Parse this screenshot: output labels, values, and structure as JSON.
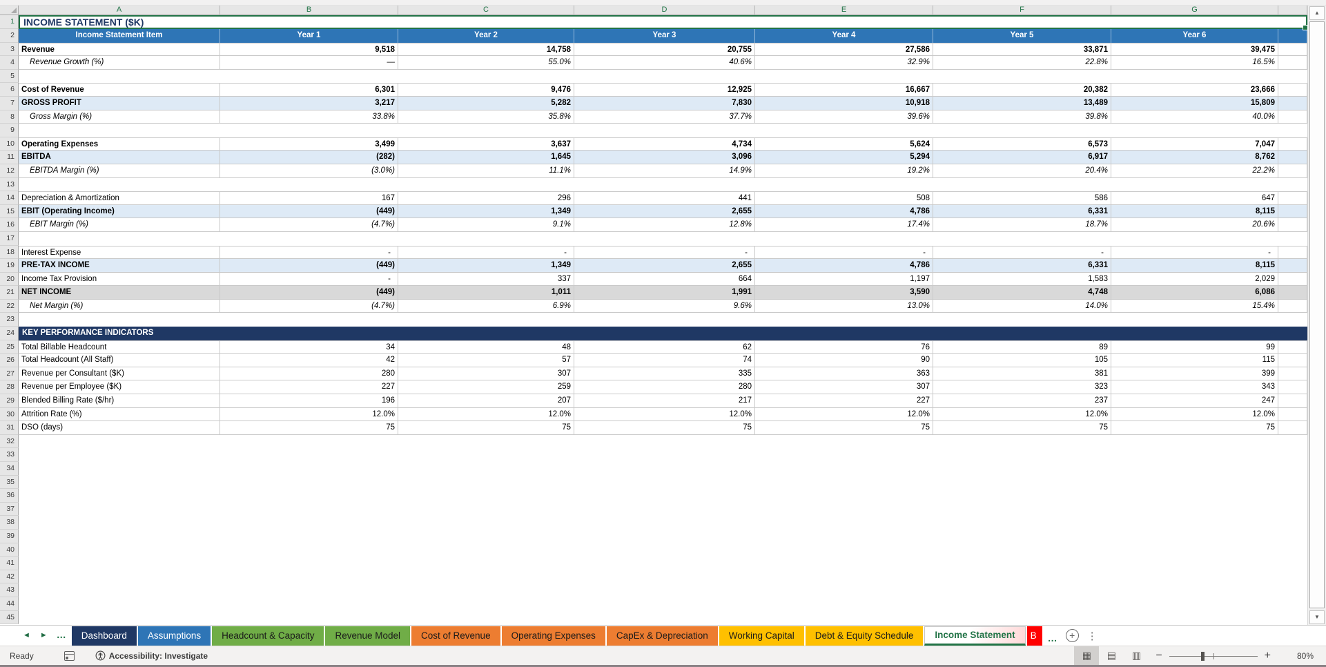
{
  "columns": {
    "letters": [
      "A",
      "B",
      "C",
      "D",
      "E",
      "F",
      "G"
    ]
  },
  "sheet": {
    "title": "INCOME STATEMENT ($K)",
    "rows": [
      {
        "n": 1,
        "type": "title",
        "label": "INCOME STATEMENT ($K)"
      },
      {
        "n": 2,
        "type": "header",
        "label": "Income Statement Item",
        "values": [
          "Year 1",
          "Year 2",
          "Year 3",
          "Year 4",
          "Year 5",
          "Year 6"
        ]
      },
      {
        "n": 3,
        "type": "bold",
        "label": "Revenue",
        "values": [
          "9,518",
          "14,758",
          "20,755",
          "27,586",
          "33,871",
          "39,475"
        ]
      },
      {
        "n": 4,
        "type": "margin",
        "label": "Revenue Growth (%)",
        "values": [
          "—",
          "55.0%",
          "40.6%",
          "32.9%",
          "22.8%",
          "16.5%"
        ]
      },
      {
        "n": 5,
        "type": "blank"
      },
      {
        "n": 6,
        "type": "bold",
        "label": "Cost of Revenue",
        "values": [
          "6,301",
          "9,476",
          "12,925",
          "16,667",
          "20,382",
          "23,666"
        ]
      },
      {
        "n": 7,
        "type": "subtotal",
        "label": "GROSS PROFIT",
        "values": [
          "3,217",
          "5,282",
          "7,830",
          "10,918",
          "13,489",
          "15,809"
        ]
      },
      {
        "n": 8,
        "type": "margin",
        "label": "Gross Margin (%)",
        "values": [
          "33.8%",
          "35.8%",
          "37.7%",
          "39.6%",
          "39.8%",
          "40.0%"
        ]
      },
      {
        "n": 9,
        "type": "blank"
      },
      {
        "n": 10,
        "type": "bold",
        "label": "Operating Expenses",
        "values": [
          "3,499",
          "3,637",
          "4,734",
          "5,624",
          "6,573",
          "7,047"
        ]
      },
      {
        "n": 11,
        "type": "subtotal",
        "label": "EBITDA",
        "values": [
          "(282)",
          "1,645",
          "3,096",
          "5,294",
          "6,917",
          "8,762"
        ]
      },
      {
        "n": 12,
        "type": "margin",
        "label": "EBITDA Margin (%)",
        "values": [
          "(3.0%)",
          "11.1%",
          "14.9%",
          "19.2%",
          "20.4%",
          "22.2%"
        ]
      },
      {
        "n": 13,
        "type": "blank"
      },
      {
        "n": 14,
        "type": "data",
        "label": "Depreciation & Amortization",
        "values": [
          "167",
          "296",
          "441",
          "508",
          "586",
          "647"
        ]
      },
      {
        "n": 15,
        "type": "subtotal",
        "label": "EBIT (Operating Income)",
        "values": [
          "(449)",
          "1,349",
          "2,655",
          "4,786",
          "6,331",
          "8,115"
        ]
      },
      {
        "n": 16,
        "type": "margin",
        "label": "EBIT Margin (%)",
        "values": [
          "(4.7%)",
          "9.1%",
          "12.8%",
          "17.4%",
          "18.7%",
          "20.6%"
        ]
      },
      {
        "n": 17,
        "type": "blank"
      },
      {
        "n": 18,
        "type": "data",
        "label": "Interest Expense",
        "values": [
          "-",
          "-",
          "-",
          "-",
          "-",
          "-"
        ]
      },
      {
        "n": 19,
        "type": "subtotal",
        "label": "PRE-TAX INCOME",
        "values": [
          "(449)",
          "1,349",
          "2,655",
          "4,786",
          "6,331",
          "8,115"
        ]
      },
      {
        "n": 20,
        "type": "data",
        "label": "Income Tax Provision",
        "values": [
          "-",
          "337",
          "664",
          "1,197",
          "1,583",
          "2,029"
        ]
      },
      {
        "n": 21,
        "type": "total",
        "label": "NET INCOME",
        "values": [
          "(449)",
          "1,011",
          "1,991",
          "3,590",
          "4,748",
          "6,086"
        ]
      },
      {
        "n": 22,
        "type": "margin",
        "label": "Net Margin (%)",
        "values": [
          "(4.7%)",
          "6.9%",
          "9.6%",
          "13.0%",
          "14.0%",
          "15.4%"
        ]
      },
      {
        "n": 23,
        "type": "blank"
      },
      {
        "n": 24,
        "type": "section",
        "label": "KEY PERFORMANCE INDICATORS"
      },
      {
        "n": 25,
        "type": "kpi",
        "label": "Total Billable Headcount",
        "values": [
          "34",
          "48",
          "62",
          "76",
          "89",
          "99"
        ]
      },
      {
        "n": 26,
        "type": "kpi",
        "label": "Total Headcount (All Staff)",
        "values": [
          "42",
          "57",
          "74",
          "90",
          "105",
          "115"
        ]
      },
      {
        "n": 27,
        "type": "kpi",
        "label": "Revenue per Consultant ($K)",
        "values": [
          "280",
          "307",
          "335",
          "363",
          "381",
          "399"
        ]
      },
      {
        "n": 28,
        "type": "kpi",
        "label": "Revenue per Employee ($K)",
        "values": [
          "227",
          "259",
          "280",
          "307",
          "323",
          "343"
        ]
      },
      {
        "n": 29,
        "type": "kpi",
        "label": "Blended Billing Rate ($/hr)",
        "values": [
          "196",
          "207",
          "217",
          "227",
          "237",
          "247"
        ]
      },
      {
        "n": 30,
        "type": "kpi",
        "label": "Attrition Rate (%)",
        "values": [
          "12.0%",
          "12.0%",
          "12.0%",
          "12.0%",
          "12.0%",
          "12.0%"
        ]
      },
      {
        "n": 31,
        "type": "kpi",
        "label": "DSO (days)",
        "values": [
          "75",
          "75",
          "75",
          "75",
          "75",
          "75"
        ]
      }
    ],
    "last_visible_row": 45
  },
  "tabbar": {
    "more_indicator": "…",
    "tabs": [
      {
        "label": "Dashboard",
        "bg": "#1F3864",
        "fg": "#FFFFFF"
      },
      {
        "label": "Assumptions",
        "bg": "#2E75B6",
        "fg": "#FFFFFF"
      },
      {
        "label": "Headcount & Capacity",
        "bg": "#70AD47",
        "fg": "#1A1A1A"
      },
      {
        "label": "Revenue Model",
        "bg": "#70AD47",
        "fg": "#1A1A1A"
      },
      {
        "label": "Cost of Revenue",
        "bg": "#ED7D31",
        "fg": "#1A1A1A"
      },
      {
        "label": "Operating Expenses",
        "bg": "#ED7D31",
        "fg": "#1A1A1A"
      },
      {
        "label": "CapEx & Depreciation",
        "bg": "#ED7D31",
        "fg": "#1A1A1A"
      },
      {
        "label": "Working Capital",
        "bg": "#FFC000",
        "fg": "#1A1A1A"
      },
      {
        "label": "Debt & Equity Schedule",
        "bg": "#FFC000",
        "fg": "#1A1A1A"
      },
      {
        "label": "Income Statement",
        "active": true,
        "fg": "#217346"
      },
      {
        "label": "B",
        "bg": "#FF0000",
        "fg": "#FFFFFF",
        "partial": true
      }
    ]
  },
  "status": {
    "ready": "Ready",
    "accessibility": "Accessibility: Investigate",
    "zoom_percent": "80%"
  },
  "icons": {
    "scroll_left": "◄",
    "scroll_right": "►",
    "add_sheet": "+",
    "kebab": "⋮",
    "scroll_up": "▲",
    "scroll_down": "▼",
    "normal_view": "▦",
    "page_layout_view": "▤",
    "page_break_view": "▥",
    "zoom_out": "−",
    "zoom_in": "+"
  },
  "colors": {
    "header_blue": "#2E75B6",
    "navy": "#1F3864",
    "subtotal_blue": "#DEEAF6",
    "total_gray": "#D9D9D9",
    "selection_green": "#217346",
    "tab_green": "#70AD47",
    "tab_orange": "#ED7D31",
    "tab_yellow": "#FFC000",
    "tab_red": "#FF0000"
  }
}
